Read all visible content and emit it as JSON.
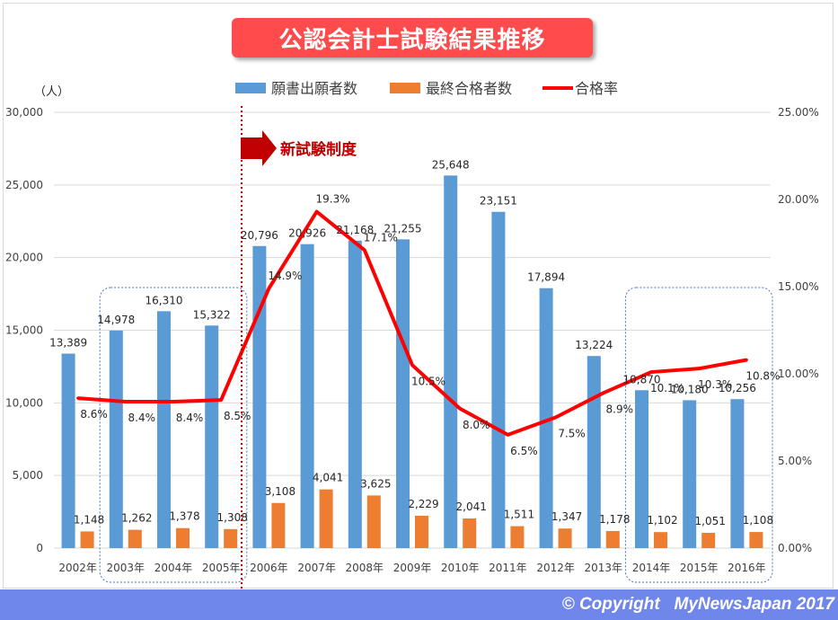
{
  "header": {
    "title": "公認会計士試験結果推移"
  },
  "footer": {
    "copyright": "© Copyright   MyNewsJapan 2017"
  },
  "annotation": {
    "new_system": "新試験制度"
  },
  "colors": {
    "applicants": "#5b9bd5",
    "passers": "#ed7d31",
    "rate": "#ff0000",
    "marker_line": "#c00000",
    "box": "#4472c4"
  },
  "chart_data": {
    "type": "bar",
    "categories": [
      "2002年",
      "2003年",
      "2004年",
      "2005年",
      "2006年",
      "2007年",
      "2008年",
      "2009年",
      "2010年",
      "2011年",
      "2012年",
      "2013年",
      "2014年",
      "2015年",
      "2016年"
    ],
    "series": [
      {
        "name": "願書出願者数",
        "type": "bar",
        "axis": "left",
        "values": [
          13389,
          14978,
          16310,
          15322,
          20796,
          20926,
          21168,
          21255,
          25648,
          23151,
          17894,
          13224,
          10870,
          10180,
          10256
        ],
        "labels": [
          "13,389",
          "14,978",
          "16,310",
          "15,322",
          "20,796",
          "20,926",
          "21,168",
          "21,255",
          "25,648",
          "23,151",
          "17,894",
          "13,224",
          "10,870",
          "10,180",
          "10,256"
        ]
      },
      {
        "name": "最終合格者数",
        "type": "bar",
        "axis": "left",
        "values": [
          1148,
          1262,
          1378,
          1308,
          3108,
          4041,
          3625,
          2229,
          2041,
          1511,
          1347,
          1178,
          1102,
          1051,
          1108
        ],
        "labels": [
          "1,148",
          "1,262",
          "1,378",
          "1,308",
          "3,108",
          "4,041",
          "3,625",
          "2,229",
          "2,041",
          "1,511",
          "1,347",
          "1,178",
          "1,102",
          "1,051",
          "1,108"
        ]
      },
      {
        "name": "合格率",
        "type": "line",
        "axis": "right",
        "values": [
          8.6,
          8.4,
          8.4,
          8.5,
          14.9,
          19.3,
          17.1,
          10.5,
          8.0,
          6.5,
          7.5,
          8.9,
          10.1,
          10.3,
          10.8
        ],
        "labels": [
          "8.6%",
          "8.4%",
          "8.4%",
          "8.5%",
          "14.9%",
          "19.3%",
          "17.1%",
          "10.5%",
          "8.0%",
          "6.5%",
          "7.5%",
          "8.9%",
          "10.1%",
          "10.3%",
          "10.8%"
        ]
      }
    ],
    "y_left": {
      "unit": "（人）",
      "min": 0,
      "max": 30000,
      "ticks": [
        "0",
        "5,000",
        "10,000",
        "15,000",
        "20,000",
        "25,000",
        "30,000"
      ]
    },
    "y_right": {
      "min": 0,
      "max": 25,
      "ticks": [
        "0.00%",
        "5.00%",
        "10.00%",
        "15.00%",
        "20.00%",
        "25.00%"
      ]
    },
    "grid": true,
    "legend": "top"
  }
}
